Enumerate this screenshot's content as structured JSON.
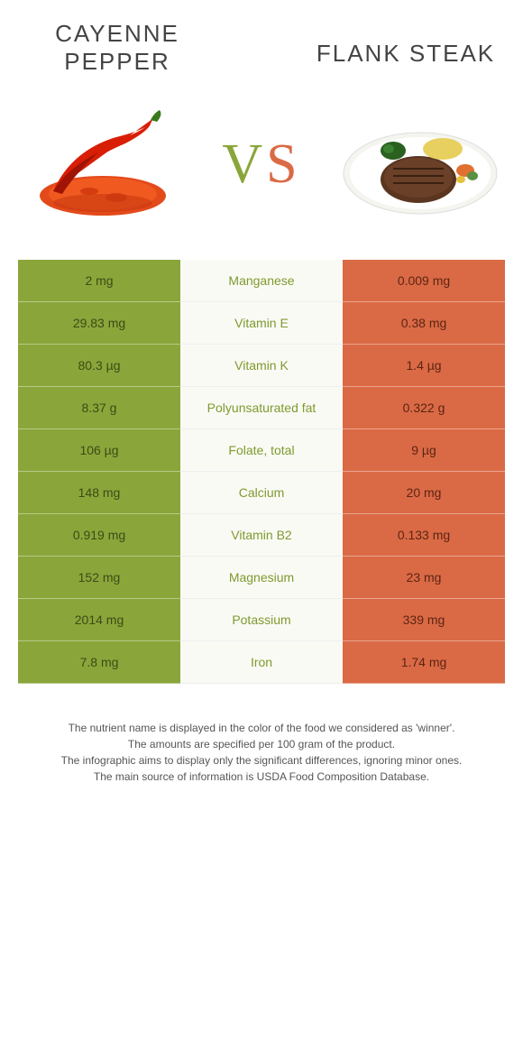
{
  "colors": {
    "left": "#8aa63a",
    "left_text": "#3e4a16",
    "right": "#da6a45",
    "right_text": "#5c2414",
    "mid_bg": "#fafaf5",
    "mid_text_left": "#7e9a2e",
    "mid_text_right": "#c45a38"
  },
  "header": {
    "left_title": "Cayenne pepper",
    "right_title": "Flank steak",
    "vs_v": "V",
    "vs_s": "S"
  },
  "rows": [
    {
      "left": "2 mg",
      "name": "Manganese",
      "right": "0.009 mg",
      "winner": "left"
    },
    {
      "left": "29.83 mg",
      "name": "Vitamin E",
      "right": "0.38 mg",
      "winner": "left"
    },
    {
      "left": "80.3 µg",
      "name": "Vitamin K",
      "right": "1.4 µg",
      "winner": "left"
    },
    {
      "left": "8.37 g",
      "name": "Polyunsaturated fat",
      "right": "0.322 g",
      "winner": "left"
    },
    {
      "left": "106 µg",
      "name": "Folate, total",
      "right": "9 µg",
      "winner": "left"
    },
    {
      "left": "148 mg",
      "name": "Calcium",
      "right": "20 mg",
      "winner": "left"
    },
    {
      "left": "0.919 mg",
      "name": "Vitamin B2",
      "right": "0.133 mg",
      "winner": "left"
    },
    {
      "left": "152 mg",
      "name": "Magnesium",
      "right": "23 mg",
      "winner": "left"
    },
    {
      "left": "2014 mg",
      "name": "Potassium",
      "right": "339 mg",
      "winner": "left"
    },
    {
      "left": "7.8 mg",
      "name": "Iron",
      "right": "1.74 mg",
      "winner": "left"
    }
  ],
  "footer": {
    "l1": "The nutrient name is displayed in the color of the food we considered as 'winner'.",
    "l2": "The amounts are specified per 100 gram of the product.",
    "l3": "The infographic aims to display only the significant differences, ignoring minor ones.",
    "l4": "The main source of information is USDA Food Composition Database."
  }
}
